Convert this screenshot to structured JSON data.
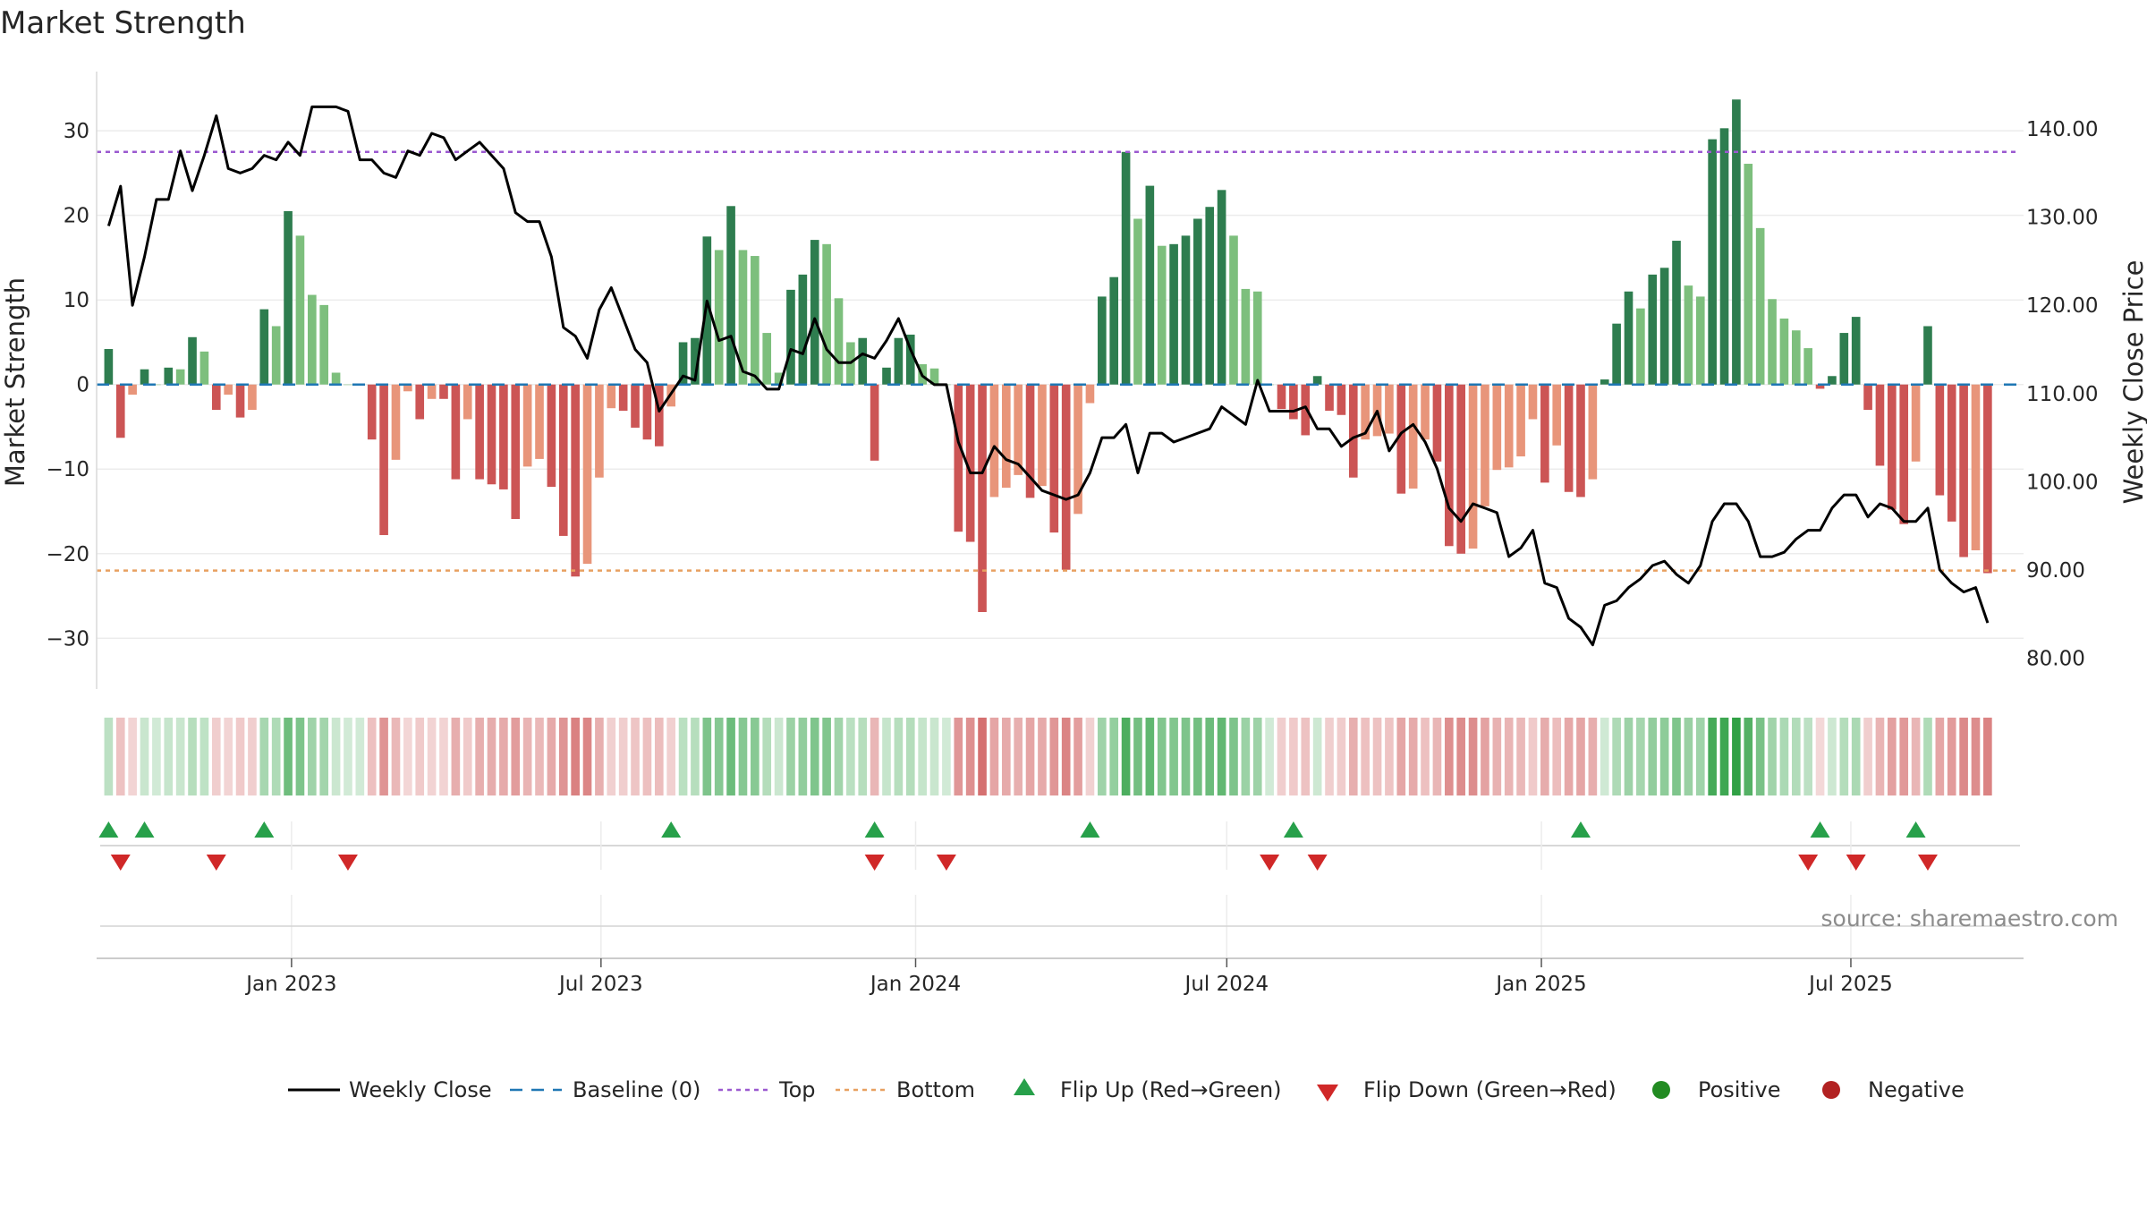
{
  "chart_data": {
    "type": "bar",
    "title": "Market Strength",
    "ylabel": "Market Strength",
    "y2label": "Weekly Close Price",
    "ylim": [
      -36,
      37
    ],
    "y2lim": [
      76.5,
      146.5
    ],
    "yticks": [
      30,
      20,
      10,
      0,
      -10,
      -20,
      -30
    ],
    "ytick_labels": [
      "30",
      "20",
      "10",
      "0",
      "−10",
      "−20",
      "−30"
    ],
    "y2ticks": [
      140,
      130,
      120,
      110,
      100,
      90,
      80
    ],
    "y2tick_labels": [
      "140.00",
      "130.00",
      "120.00",
      "110.00",
      "100.00",
      "90.00",
      "80.00"
    ],
    "x_start": "2022-09-16",
    "x_step_days": 7,
    "x_range": [
      "2022-09-09",
      "2025-10-10"
    ],
    "xticks": [
      "2023-01-01",
      "2023-07-01",
      "2024-01-01",
      "2024-07-01",
      "2025-01-01",
      "2025-07-01"
    ],
    "xtick_labels": [
      "Jan 2023",
      "Jul 2023",
      "Jan 2024",
      "Jul 2024",
      "Jan 2025",
      "Jul 2025"
    ],
    "top_line": 27.5,
    "bottom_line": -22,
    "strength": [
      4.2,
      -6.3,
      -1.2,
      1.8,
      0,
      2,
      1.8,
      5.6,
      3.9,
      -3,
      -1.2,
      -3.9,
      -3,
      8.9,
      6.9,
      20.5,
      17.6,
      10.6,
      9.4,
      1.4,
      0,
      0,
      -6.5,
      -17.8,
      -8.9,
      -0.8,
      -4.1,
      -1.7,
      -1.7,
      -11.2,
      -4.1,
      -11.2,
      -11.8,
      -12.4,
      -15.9,
      -9.7,
      -8.8,
      -12.1,
      -17.9,
      -22.7,
      -21.2,
      -11,
      -2.8,
      -3.1,
      -5.1,
      -6.5,
      -7.3,
      -2.6,
      5,
      5.5,
      17.5,
      15.9,
      21.1,
      15.9,
      15.2,
      6.1,
      1.4,
      11.2,
      13,
      17.1,
      16.6,
      10.2,
      5,
      5.5,
      -9,
      2,
      5.5,
      5.9,
      2.4,
      1.9,
      0,
      -17.4,
      -18.6,
      -26.9,
      -13.3,
      -12.2,
      -10.7,
      -13.4,
      -12,
      -17.5,
      -21.9,
      -15.3,
      -2.2,
      10.4,
      12.7,
      27.5,
      19.6,
      23.5,
      16.4,
      16.6,
      17.6,
      19.6,
      21,
      23,
      17.6,
      11.3,
      11,
      0,
      -2.9,
      -4.1,
      -6,
      1,
      -3.1,
      -3.6,
      -11,
      -6.5,
      -6.1,
      -5.8,
      -12.9,
      -12.3,
      -6.5,
      -9.1,
      -19.1,
      -20,
      -19.4,
      -14.4,
      -10.1,
      -9.8,
      -8.5,
      -4.1,
      -11.6,
      -7.2,
      -12.7,
      -13.3,
      -11.2,
      0.6,
      7.2,
      11,
      9,
      13,
      13.8,
      17,
      11.7,
      10.4,
      29,
      30.3,
      33.7,
      26.1,
      18.5,
      10.1,
      7.8,
      6.4,
      4.3,
      -0.5,
      1,
      6.1,
      8,
      -3,
      -9.6,
      -14.8,
      -16.5,
      -9.1,
      6.9,
      -13.1,
      -16.2,
      -20.4,
      -19.6,
      -22.3
    ],
    "weekly_close": [
      129,
      133.5,
      120,
      125.5,
      132,
      132,
      137.5,
      133,
      137,
      141.5,
      135.5,
      135,
      135.5,
      137,
      136.5,
      138.5,
      137.0,
      142.5,
      142.5,
      142.5,
      142,
      136.5,
      136.5,
      135,
      134.5,
      137.5,
      137,
      139.5,
      139,
      136.5,
      137.5,
      138.5,
      137,
      135.5,
      130.5,
      129.5,
      129.5,
      125.5,
      117.5,
      116.5,
      114,
      119.5,
      122,
      118.5,
      115,
      113.5,
      108,
      110,
      112,
      111.5,
      120.5,
      116,
      116.5,
      112.5,
      112,
      110.5,
      110.5,
      115,
      114.5,
      118.5,
      115,
      113.5,
      113.5,
      114.5,
      114,
      116,
      118.5,
      115,
      112,
      111,
      111,
      104.5,
      101,
      101,
      104,
      102.5,
      102,
      100.5,
      99,
      98.5,
      98,
      98.5,
      101,
      105,
      105,
      106.5,
      101,
      105.5,
      105.5,
      104.5,
      105,
      105.5,
      106,
      108.5,
      107.5,
      106.5,
      111.5,
      108,
      108,
      108,
      108.5,
      106,
      106,
      104,
      105,
      105.5,
      108,
      103.5,
      105.5,
      106.5,
      104.5,
      101.5,
      97,
      95.5,
      97.5,
      97,
      96.5,
      91.5,
      92.5,
      94.5,
      88.5,
      88,
      84.5,
      83.5,
      81.5,
      86,
      86.5,
      88,
      89,
      90.5,
      91,
      89.5,
      88.5,
      90.5,
      95.5,
      97.5,
      97.5,
      95.5,
      91.5,
      91.5,
      92,
      93.5,
      94.5,
      94.5,
      97,
      98.5,
      98.5,
      96,
      97.5,
      97,
      95.5,
      95.5,
      97,
      90,
      88.5,
      87.5,
      88,
      84
    ],
    "flip_up_weeks": [
      0,
      3,
      13,
      47,
      64,
      82,
      99,
      123,
      143,
      151
    ],
    "flip_down_weeks": [
      1,
      9,
      20,
      64,
      70,
      97,
      101,
      142,
      146,
      152
    ],
    "source_text": "source: sharemaestro.com",
    "colors": {
      "positive_strong": "#2e7d4f",
      "positive_weak": "#7dbf7d",
      "negative_strong": "#cc5555",
      "negative_weak": "#e8957a",
      "price_line": "#000000",
      "baseline": "#1f77b4",
      "top_line": "#9b59d0",
      "bottom_line": "#e8a060",
      "flip_up": "#27a04a",
      "flip_down": "#d02828",
      "positive_marker": "#228b22",
      "negative_marker": "#b22222"
    },
    "legend": [
      {
        "label": "Weekly Close",
        "kind": "line"
      },
      {
        "label": "Baseline (0)",
        "kind": "dash"
      },
      {
        "label": "Top",
        "kind": "dot-purple"
      },
      {
        "label": "Bottom",
        "kind": "dot-orange"
      },
      {
        "label": "Flip Up (Red→Green)",
        "kind": "tri-up"
      },
      {
        "label": "Flip Down (Green→Red)",
        "kind": "tri-down"
      },
      {
        "label": "Positive",
        "kind": "circle-pos"
      },
      {
        "label": "Negative",
        "kind": "circle-neg"
      }
    ]
  }
}
